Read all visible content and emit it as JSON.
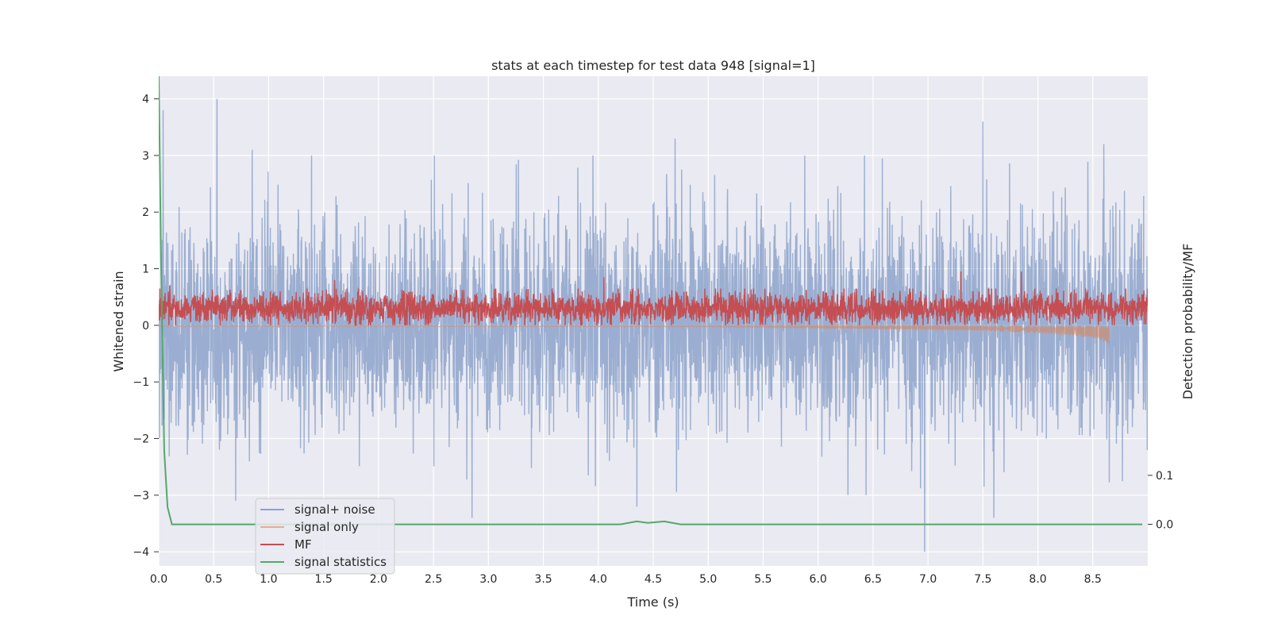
{
  "chart_data": {
    "type": "line",
    "title": "stats at each timestep for test data 948 [signal=1]",
    "xlabel": "Time (s)",
    "ylabel": "Whitened strain",
    "y2label": "Detection probability/MF",
    "xlim": [
      0.0,
      9.0
    ],
    "ylim": [
      -4.25,
      4.4
    ],
    "y2lim": [
      -0.085,
      0.915
    ],
    "x_ticks": [
      "0.0",
      "0.5",
      "1.0",
      "1.5",
      "2.0",
      "2.5",
      "3.0",
      "3.5",
      "4.0",
      "4.5",
      "5.0",
      "5.5",
      "6.0",
      "6.5",
      "7.0",
      "7.5",
      "8.0",
      "8.5"
    ],
    "y_ticks": [
      "4",
      "3",
      "2",
      "1",
      "0",
      "−1",
      "−2",
      "−3",
      "−4"
    ],
    "y2_ticks": [
      "0.1",
      "0.0"
    ],
    "grid": true,
    "legend_position": "lower-left",
    "colors": {
      "signal_noise": "#4c72b0",
      "signal_only": "#dd8452",
      "mf": "#c44e52",
      "statistics": "#55a868",
      "axes_bg": "#eaeaf2",
      "grid": "#ffffff"
    },
    "series": [
      {
        "name": "signal+ noise",
        "summary": "whitened strain noise fluctuating roughly between -2.5 and 2.5 over 0–9 s",
        "peaks_positive": [
          [
            0.04,
            3.8
          ],
          [
            0.53,
            4.0
          ],
          [
            0.85,
            3.1
          ],
          [
            3.95,
            3.0
          ],
          [
            4.7,
            3.3
          ],
          [
            7.5,
            3.6
          ],
          [
            8.6,
            3.2
          ]
        ],
        "peaks_negative": [
          [
            0.7,
            -3.1
          ],
          [
            2.85,
            -3.4
          ],
          [
            4.35,
            -3.2
          ],
          [
            6.97,
            -4.0
          ],
          [
            7.6,
            -3.4
          ]
        ]
      },
      {
        "name": "signal only",
        "summary": "chirp growing from near 0 to about -0.4 amplitude, ending at t ≈ 8.65 s",
        "x": [
          0.0,
          5.0,
          6.0,
          7.0,
          7.5,
          8.0,
          8.3,
          8.5,
          8.6,
          8.65
        ],
        "envelope": [
          0.02,
          0.03,
          0.05,
          0.08,
          0.1,
          0.14,
          0.18,
          0.22,
          0.28,
          0.35
        ]
      },
      {
        "name": "MF",
        "summary": "matched filter output oscillating about 0.3 (0 to ~0.7) across the full duration",
        "peaks": [
          [
            0.1,
            0.7
          ],
          [
            1.6,
            0.8
          ],
          [
            4.05,
            0.85
          ],
          [
            7.3,
            0.95
          ],
          [
            7.85,
            0.95
          ]
        ]
      },
      {
        "name": "signal statistics",
        "axis": "right",
        "x": [
          0.0,
          0.02,
          0.05,
          0.08,
          0.12,
          4.2,
          4.35,
          4.45,
          4.6,
          4.75,
          8.95
        ],
        "values": [
          0.92,
          0.55,
          0.15,
          0.035,
          0.0,
          0.0,
          0.006,
          0.003,
          0.006,
          0.0,
          0.0
        ]
      }
    ]
  }
}
